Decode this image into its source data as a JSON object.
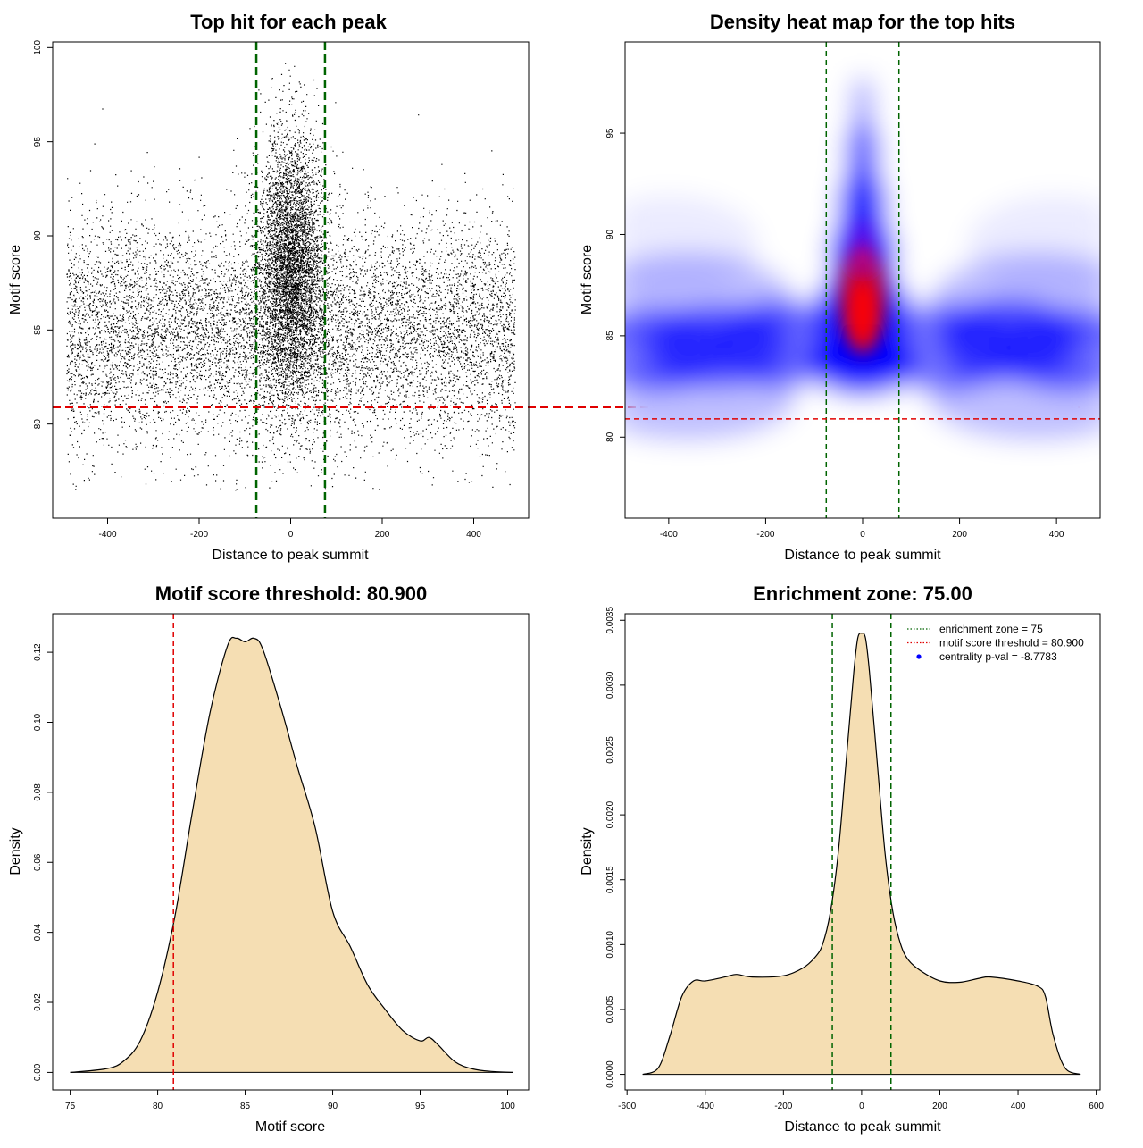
{
  "chart_data": [
    {
      "id": "scatter",
      "type": "scatter",
      "title": "Top hit for each peak",
      "xlabel": "Distance to peak summit",
      "ylabel": "Motif score",
      "xlim": [
        -520,
        520
      ],
      "ylim": [
        75,
        100.3
      ],
      "xticks": [
        -400,
        -200,
        0,
        200,
        400
      ],
      "yticks": [
        80,
        85,
        90,
        95,
        100
      ],
      "vlines": [
        -75,
        75
      ],
      "hline": 80.9,
      "vline_color": "#006400",
      "hline_color": "#e00000",
      "point_color": "#000000",
      "x_range": [
        -490,
        490
      ],
      "background_score_center": 85,
      "background_score_sd": 3.0,
      "central_score_center": 88.5,
      "central_score_sd": 3.5,
      "central_width_sd": 35,
      "grid": false
    },
    {
      "id": "heatmap",
      "type": "heatmap",
      "title": "Density heat map for the top hits",
      "xlabel": "Distance to peak summit",
      "ylabel": "Motif score",
      "xlim": [
        -490,
        490
      ],
      "ylim": [
        76,
        99.5
      ],
      "xticks": [
        -400,
        -200,
        0,
        200,
        400
      ],
      "yticks": [
        80,
        85,
        90,
        95
      ],
      "vlines": [
        -75,
        75
      ],
      "hline": 80.9,
      "colors": [
        "#ffffff",
        "#0000ff",
        "#ff0000"
      ],
      "vline_color": "#006400",
      "hline_color": "#e00000",
      "grid": false
    },
    {
      "id": "score-density",
      "type": "area",
      "title": "Motif score threshold: 80.900",
      "xlabel": "Motif score",
      "ylabel": "Density",
      "xlim": [
        74,
        101.2
      ],
      "ylim": [
        -0.005,
        0.131
      ],
      "xticks": [
        75,
        80,
        85,
        90,
        95,
        100
      ],
      "yticks": [
        0.0,
        0.02,
        0.04,
        0.06,
        0.08,
        0.1,
        0.12
      ],
      "ytick_labels": [
        "0.00",
        "0.02",
        "0.04",
        "0.06",
        "0.08",
        "0.10",
        "0.12"
      ],
      "vline": 80.9,
      "vline_color": "#e00000",
      "fill": "#f5deb3",
      "x": [
        75,
        77,
        78,
        79,
        80,
        81,
        82,
        83,
        84,
        84.5,
        85,
        85.5,
        86,
        87,
        88,
        89,
        90,
        91,
        92,
        93,
        94,
        95,
        95.5,
        96,
        97,
        98,
        99,
        100.3
      ],
      "y": [
        0.0,
        0.001,
        0.003,
        0.009,
        0.023,
        0.045,
        0.075,
        0.103,
        0.122,
        0.124,
        0.123,
        0.124,
        0.121,
        0.105,
        0.087,
        0.07,
        0.046,
        0.036,
        0.025,
        0.018,
        0.012,
        0.009,
        0.01,
        0.008,
        0.003,
        0.001,
        0.0003,
        0.0
      ]
    },
    {
      "id": "distance-density",
      "type": "area",
      "title": "Enrichment zone: 75.00",
      "xlabel": "Distance to peak summit",
      "ylabel": "Density",
      "xlim": [
        -605,
        610
      ],
      "ylim": [
        -0.00012,
        0.00355
      ],
      "xticks": [
        -600,
        -400,
        -200,
        0,
        200,
        400,
        600
      ],
      "yticks": [
        0.0,
        0.0005,
        0.001,
        0.0015,
        0.002,
        0.0025,
        0.003,
        0.0035
      ],
      "ytick_labels": [
        "0.0000",
        "0.0005",
        "0.0010",
        "0.0015",
        "0.0020",
        "0.0025",
        "0.0030",
        "0.0035"
      ],
      "vlines": [
        -75,
        75
      ],
      "vline_color": "#006400",
      "fill": "#f5deb3",
      "x": [
        -560,
        -520,
        -490,
        -460,
        -430,
        -400,
        -350,
        -320,
        -280,
        -200,
        -150,
        -120,
        -100,
        -80,
        -60,
        -40,
        -20,
        -10,
        0,
        10,
        20,
        40,
        60,
        80,
        100,
        120,
        150,
        200,
        250,
        300,
        330,
        400,
        450,
        470,
        490,
        520,
        560
      ],
      "y": [
        0.0,
        5e-05,
        0.0003,
        0.0006,
        0.00072,
        0.00072,
        0.00075,
        0.00077,
        0.00075,
        0.00076,
        0.00082,
        0.0009,
        0.001,
        0.00125,
        0.0017,
        0.0024,
        0.0031,
        0.00336,
        0.0034,
        0.00336,
        0.0031,
        0.0024,
        0.0017,
        0.00125,
        0.001,
        0.00088,
        0.0008,
        0.00072,
        0.00071,
        0.00074,
        0.00075,
        0.00072,
        0.00068,
        0.0006,
        0.0003,
        5e-05,
        0.0
      ],
      "legend": [
        {
          "label": "enrichment zone = 75",
          "style": "dotted",
          "color": "#006400"
        },
        {
          "label": "motif score threshold = 80.900",
          "style": "dotted",
          "color": "#e00000"
        },
        {
          "label": "centrality p-val = -8.7783",
          "style": "point",
          "color": "#0000ff"
        }
      ],
      "legend_position": "top-right"
    }
  ]
}
